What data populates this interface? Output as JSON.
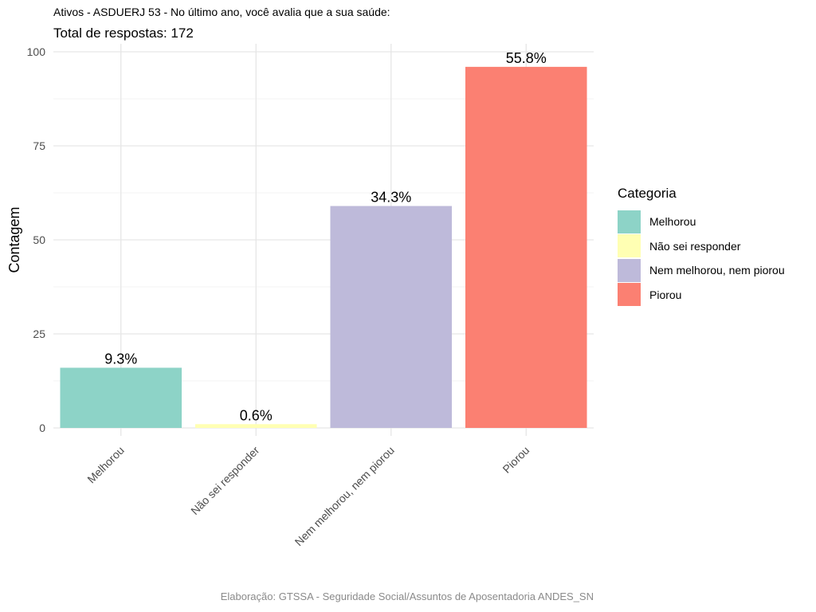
{
  "header": {
    "title": "Ativos - ASDUERJ 53 - No último ano, você avalia que a sua saúde:",
    "subtitle": "Total de respostas: 172"
  },
  "caption": "Elaboração: GTSSA - Seguridade Social/Assuntos de Aposentadoria ANDES_SN",
  "chart_data": {
    "type": "bar",
    "title": "Ativos - ASDUERJ 53 - No último ano, você avalia que a sua saúde:",
    "subtitle": "Total de respostas: 172",
    "xlabel": "",
    "ylabel": "Contagem",
    "categories": [
      "Melhorou",
      "Não sei responder",
      "Nem melhorou, nem piorou",
      "Piorou"
    ],
    "values": [
      16,
      1,
      59,
      96
    ],
    "data_labels": [
      "9.3%",
      "0.6%",
      "34.3%",
      "55.8%"
    ],
    "colors": [
      "#8DD3C7",
      "#FFFFB3",
      "#BEBADA",
      "#FB8072"
    ],
    "ylim": [
      0,
      100
    ],
    "yticks": [
      0,
      25,
      50,
      75,
      100
    ],
    "grid": true,
    "legend": {
      "title": "Categoria",
      "position": "right",
      "entries": [
        "Melhorou",
        "Não sei responder",
        "Nem melhorou, nem piorou",
        "Piorou"
      ]
    }
  }
}
